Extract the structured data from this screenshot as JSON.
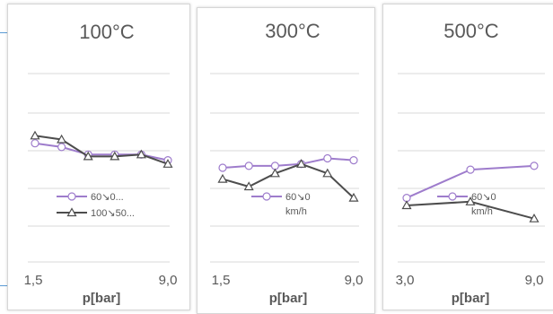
{
  "colors": {
    "gridline": "#d9d9d9",
    "text": "#595959",
    "series_light": "#9e7ccc",
    "series_dark": "#4d4d4d",
    "panel_border": "#d6d6d6"
  },
  "chart_data": [
    {
      "type": "line",
      "title": "100°C",
      "xlabel": "p[bar]",
      "x_tick_labels": [
        "1,5",
        "9,0"
      ],
      "grid": "horizontal",
      "legend_position": "bottom-right",
      "series": [
        {
          "name": "60↘0...",
          "marker": "circle",
          "color": "light",
          "values": [
            0.63,
            0.61,
            0.57,
            0.57,
            0.57,
            0.54
          ]
        },
        {
          "name": "100↘50...",
          "marker": "triangle",
          "color": "dark",
          "values": [
            0.67,
            0.65,
            0.56,
            0.56,
            0.57,
            0.52
          ]
        }
      ]
    },
    {
      "type": "line",
      "title": "300°C",
      "xlabel": "p[bar]",
      "x_tick_labels": [
        "1,5",
        "9,0"
      ],
      "grid": "horizontal",
      "legend_position": "bottom-right",
      "series": [
        {
          "name": "60↘0 km/h",
          "marker": "circle",
          "color": "light",
          "values": [
            0.5,
            0.51,
            0.51,
            0.52,
            0.55,
            0.54
          ]
        },
        {
          "name": "",
          "marker": "triangle",
          "color": "dark",
          "values": [
            0.44,
            0.4,
            0.47,
            0.52,
            0.47,
            0.34
          ]
        }
      ]
    },
    {
      "type": "line",
      "title": "500°C",
      "xlabel": "p[bar]",
      "x_tick_labels": [
        "3,0",
        "9,0"
      ],
      "grid": "horizontal",
      "legend_position": "bottom-right",
      "series": [
        {
          "name": "60↘0 km/h",
          "marker": "circle",
          "color": "light",
          "values": [
            0.34,
            0.49,
            0.51
          ]
        },
        {
          "name": "",
          "marker": "triangle",
          "color": "dark",
          "values": [
            0.3,
            0.32,
            0.23
          ]
        }
      ]
    }
  ]
}
